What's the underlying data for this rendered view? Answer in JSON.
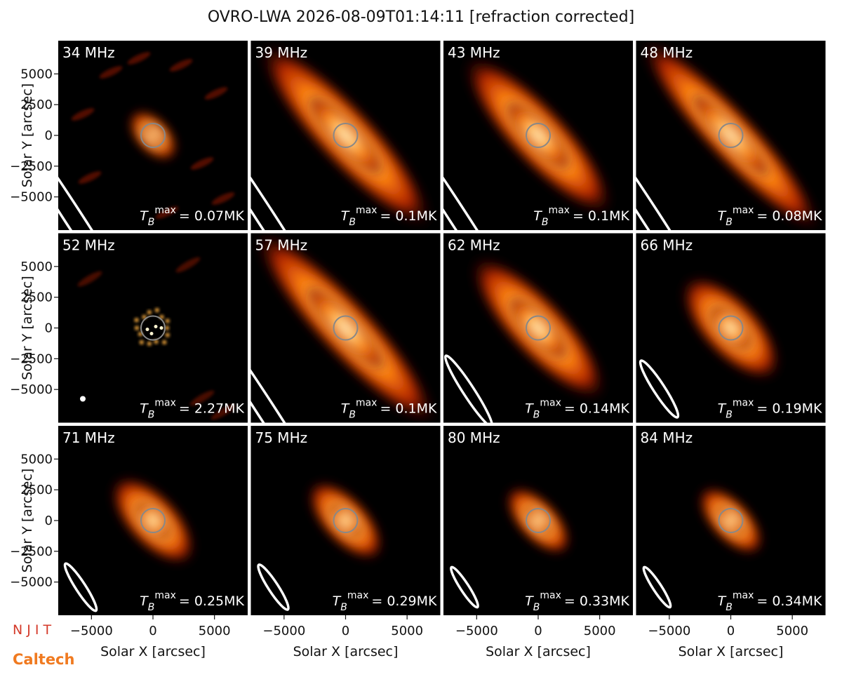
{
  "chart_data": {
    "type": "image_grid",
    "title": "OVRO-LWA 2026-08-09T01:14:11 [refraction corrected]",
    "xlabel": "Solar X [arcsec]",
    "ylabel": "Solar Y [arcsec]",
    "xlim": [
      -7700,
      7700
    ],
    "ylim": [
      -7700,
      7700
    ],
    "xticks": [
      {
        "value": -5000,
        "label": "−5000"
      },
      0,
      5000
    ],
    "yticks": [
      {
        "value": -5000,
        "label": "−5000"
      },
      {
        "value": -2500,
        "label": "−2500"
      },
      0,
      2500,
      5000
    ],
    "tmax_symbol": {
      "base": "T",
      "sub": "B",
      "sup": "max"
    },
    "panels": [
      {
        "frequency": "34 MHz",
        "tmax": "= 0.07MK"
      },
      {
        "frequency": "39 MHz",
        "tmax": "= 0.1MK"
      },
      {
        "frequency": "43 MHz",
        "tmax": "= 0.1MK"
      },
      {
        "frequency": "48 MHz",
        "tmax": "= 0.08MK"
      },
      {
        "frequency": "52 MHz",
        "tmax": "= 2.27MK"
      },
      {
        "frequency": "57 MHz",
        "tmax": "= 0.1MK"
      },
      {
        "frequency": "62 MHz",
        "tmax": "= 0.14MK"
      },
      {
        "frequency": "66 MHz",
        "tmax": "= 0.19MK"
      },
      {
        "frequency": "71 MHz",
        "tmax": "= 0.25MK"
      },
      {
        "frequency": "75 MHz",
        "tmax": "= 0.29MK"
      },
      {
        "frequency": "80 MHz",
        "tmax": "= 0.33MK"
      },
      {
        "frequency": "84 MHz",
        "tmax": "= 0.34MK"
      }
    ],
    "logos": {
      "njit": "N J I T",
      "caltech": "Caltech"
    }
  }
}
